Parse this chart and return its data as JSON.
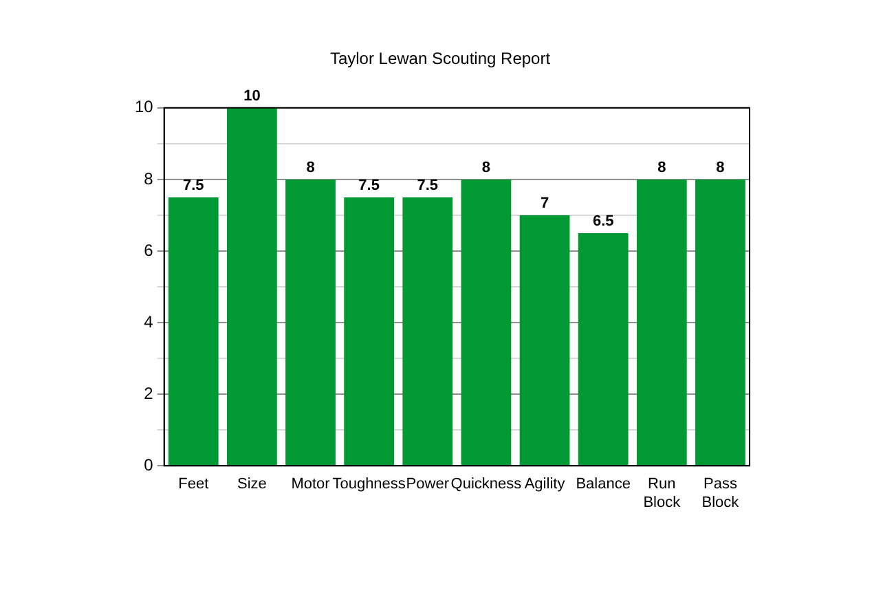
{
  "chart_data": {
    "type": "bar",
    "title": "Taylor Lewan Scouting Report",
    "categories": [
      "Feet",
      "Size",
      "Motor",
      "Toughness",
      "Power",
      "Quickness",
      "Agility",
      "Balance",
      "Run Block",
      "Pass Block"
    ],
    "values": [
      7.5,
      10,
      8,
      7.5,
      7.5,
      8,
      7,
      6.5,
      8,
      8
    ],
    "color": "#009933",
    "ylim": [
      0,
      10
    ],
    "yticks": [
      0,
      {
        "value": 1,
        "label": null
      },
      2,
      {
        "value": 3,
        "label": null
      },
      4,
      {
        "value": 5,
        "label": null
      },
      6,
      {
        "value": 7,
        "label": null
      },
      8,
      {
        "value": 9,
        "label": null
      },
      10
    ],
    "grid": "y",
    "data_labels": true,
    "legend": false
  }
}
